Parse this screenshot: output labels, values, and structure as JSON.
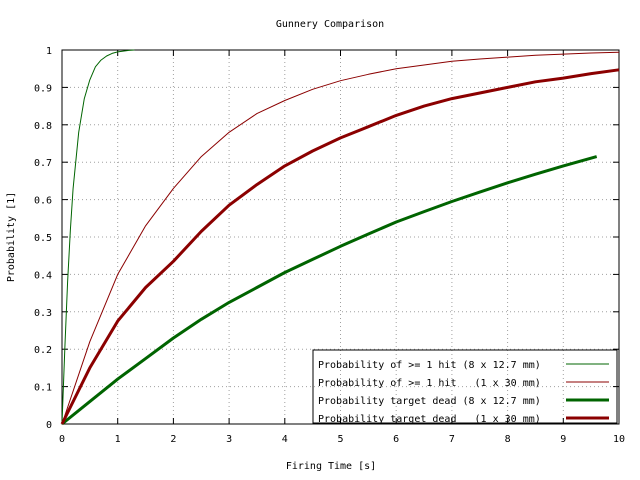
{
  "chart_data": {
    "type": "line",
    "title": "Gunnery Comparison",
    "xlabel": "Firing Time [s]",
    "ylabel": "Probability [1]",
    "xlim": [
      0,
      10
    ],
    "ylim": [
      0,
      1
    ],
    "x_ticks": [
      "0",
      "1",
      "2",
      "3",
      "4",
      "5",
      "6",
      "7",
      "8",
      "9",
      "10"
    ],
    "y_ticks": [
      "0",
      "0.1",
      "0.2",
      "0.3",
      "0.4",
      "0.5",
      "0.6",
      "0.7",
      "0.8",
      "0.9",
      "1"
    ],
    "grid": true,
    "legend_position": "bottom-right",
    "series": [
      {
        "name": "Probability of >= 1 hit (8 x 12.7 mm)",
        "color": "#006400",
        "style": "thin",
        "x": [
          0,
          0.05,
          0.1,
          0.15,
          0.2,
          0.3,
          0.4,
          0.5,
          0.6,
          0.7,
          0.8,
          0.9,
          1.0,
          1.1,
          1.2,
          1.3
        ],
        "y": [
          0,
          0.2,
          0.38,
          0.52,
          0.63,
          0.78,
          0.87,
          0.92,
          0.955,
          0.973,
          0.984,
          0.991,
          0.995,
          0.997,
          0.999,
          1.0
        ]
      },
      {
        "name": "Probability of >= 1 hit   (1 x 30 mm)",
        "color": "#8b0000",
        "style": "thin",
        "x": [
          0,
          0.5,
          1,
          1.5,
          2,
          2.5,
          3,
          3.5,
          4,
          4.5,
          5,
          5.5,
          6,
          6.5,
          7,
          7.5,
          8,
          8.5,
          9,
          9.5,
          10
        ],
        "y": [
          0,
          0.22,
          0.4,
          0.53,
          0.63,
          0.715,
          0.78,
          0.83,
          0.865,
          0.895,
          0.918,
          0.935,
          0.95,
          0.96,
          0.97,
          0.976,
          0.981,
          0.986,
          0.989,
          0.992,
          0.994
        ]
      },
      {
        "name": "Probability target dead (8 x 12.7 mm)",
        "color": "#006400",
        "style": "thick",
        "x": [
          0,
          0.5,
          1,
          1.5,
          2,
          2.5,
          3,
          3.5,
          4,
          4.5,
          5,
          5.5,
          6,
          6.5,
          7,
          7.5,
          8,
          8.5,
          9,
          9.6
        ],
        "y": [
          0,
          0.06,
          0.12,
          0.175,
          0.23,
          0.28,
          0.325,
          0.365,
          0.405,
          0.44,
          0.475,
          0.508,
          0.54,
          0.568,
          0.595,
          0.62,
          0.645,
          0.668,
          0.69,
          0.715
        ]
      },
      {
        "name": "Probability target dead   (1 x 30 mm)",
        "color": "#8b0000",
        "style": "thick",
        "x": [
          0,
          0.5,
          1,
          1.5,
          2,
          2.5,
          3,
          3.5,
          4,
          4.5,
          5,
          5.5,
          6,
          6.5,
          7,
          7.5,
          8,
          8.5,
          9,
          9.5,
          10
        ],
        "y": [
          0,
          0.15,
          0.275,
          0.365,
          0.435,
          0.515,
          0.585,
          0.64,
          0.69,
          0.73,
          0.765,
          0.795,
          0.825,
          0.85,
          0.87,
          0.885,
          0.9,
          0.915,
          0.925,
          0.937,
          0.947
        ]
      }
    ]
  }
}
